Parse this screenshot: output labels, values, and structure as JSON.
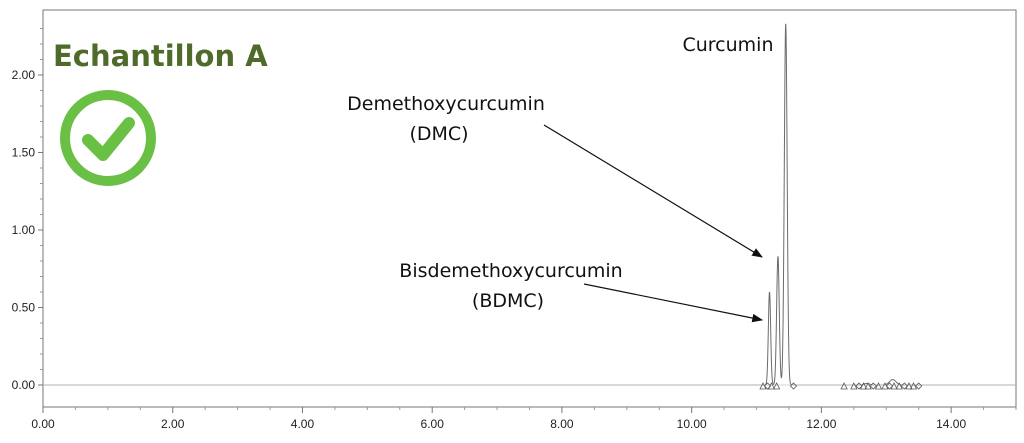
{
  "sample": {
    "title": "Echantillon A",
    "title_color": "#4f6b2a",
    "status_icon": "check-circle-icon",
    "status_color": "#6abf45"
  },
  "chart_data": {
    "type": "line",
    "title": "",
    "xlabel": "",
    "ylabel": "",
    "xlim": [
      0,
      15
    ],
    "ylim": [
      -0.1,
      2.4
    ],
    "x_ticks": [
      0,
      2,
      4,
      6,
      8,
      10,
      12,
      14
    ],
    "x_tick_labels": [
      "0.00",
      "2.00",
      "4.00",
      "6.00",
      "8.00",
      "10.00",
      "12.00",
      "14.00"
    ],
    "y_ticks": [
      0,
      0.5,
      1.0,
      1.5,
      2.0
    ],
    "y_tick_labels": [
      "0.00",
      "0.50",
      "1.00",
      "1.50",
      "2.00"
    ],
    "grid": false,
    "line_color": "#6b6b6b",
    "peaks": [
      {
        "name": "Bisdemethoxycurcumin (BDMC)",
        "rt": 11.2,
        "height": 0.6,
        "width": 0.018
      },
      {
        "name": "Demethoxycurcumin (DMC)",
        "rt": 11.33,
        "height": 0.83,
        "width": 0.02
      },
      {
        "name": "Curcumin",
        "rt": 11.45,
        "height": 2.33,
        "width": 0.022
      }
    ],
    "minor_peaks": [
      {
        "rt": 13.1,
        "height": 0.035,
        "width": 0.05
      },
      {
        "rt": 12.7,
        "height": 0.01,
        "width": 0.04
      }
    ],
    "peak_markers_rt": [
      11.1,
      11.17,
      11.23,
      11.31,
      11.57,
      12.35,
      12.5,
      12.58,
      12.65,
      12.72,
      12.8,
      12.88,
      12.98,
      13.05,
      13.12,
      13.2,
      13.28,
      13.35,
      13.42,
      13.5
    ],
    "annotations": [
      {
        "lines": [
          "Curcumin"
        ],
        "target_rt": 11.45
      },
      {
        "lines": [
          "Demethoxycurcumin",
          "(DMC)"
        ],
        "target_rt": 11.3
      },
      {
        "lines": [
          "Bisdemethoxycurcumin",
          "(BDMC)"
        ],
        "target_rt": 11.17
      }
    ]
  }
}
